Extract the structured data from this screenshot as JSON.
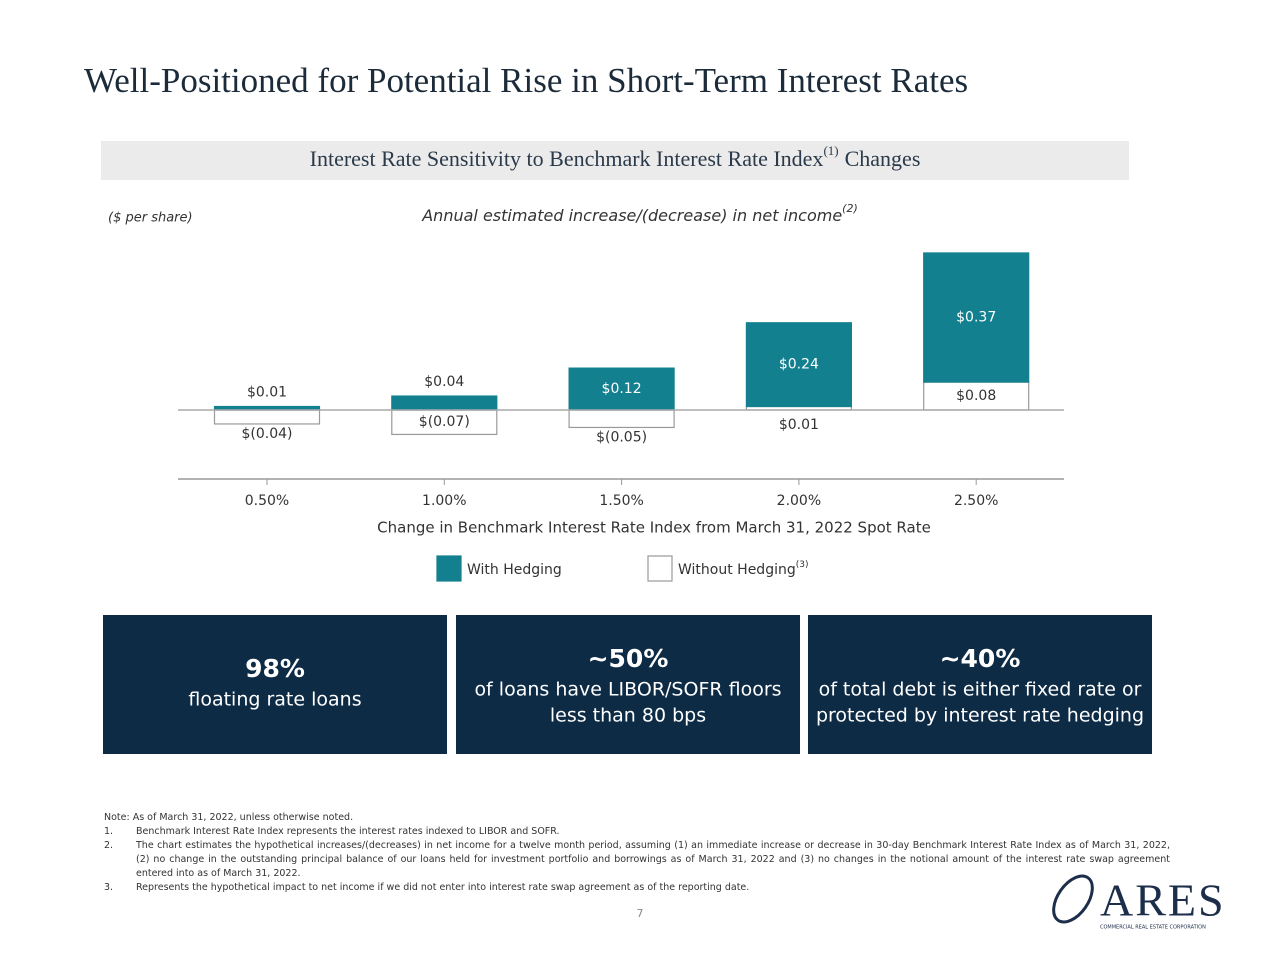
{
  "header": {
    "title": "Well-Positioned for Potential Rise in Short-Term Interest Rates"
  },
  "banner": {
    "text": "Interest Rate Sensitivity to Benchmark Interest Rate Index",
    "note": "(1)",
    "text_after": "Changes"
  },
  "chart_data": {
    "type": "bar",
    "stacked": true,
    "title": "Annual estimated increase/(decrease) in net income",
    "title_note": "(2)",
    "unit_label": "($ per share)",
    "xlabel": "Change in Benchmark Interest Rate Index from March 31, 2022 Spot Rate",
    "categories": [
      "0.50%",
      "1.00%",
      "1.50%",
      "2.00%",
      "2.50%"
    ],
    "series": [
      {
        "name": "With Hedging",
        "color": "#13808f",
        "values": [
          0.01,
          0.04,
          0.12,
          0.24,
          0.37
        ],
        "value_labels": [
          "$0.01",
          "$0.04",
          "$0.12",
          "$0.24",
          "$0.37"
        ]
      },
      {
        "name": "Without Hedging",
        "note": "(3)",
        "color": "#ffffff",
        "values": [
          -0.04,
          -0.07,
          -0.05,
          0.01,
          0.08
        ],
        "value_labels": [
          "$(0.04)",
          "$(0.07)",
          "$(0.05)",
          "$0.01",
          "$0.08"
        ]
      }
    ]
  },
  "stats": [
    {
      "value": "98%",
      "lines": [
        "floating rate loans"
      ]
    },
    {
      "value": "~50%",
      "lines": [
        "of loans have LIBOR/SOFR floors",
        "less than 80 bps"
      ]
    },
    {
      "value": "~40%",
      "lines": [
        "of total debt is either fixed rate or",
        "protected by interest rate hedging"
      ]
    }
  ],
  "notes": {
    "intro": "Note: As of March 31, 2022, unless otherwise noted.",
    "items": [
      {
        "num": "1.",
        "text": "Benchmark Interest Rate Index represents the interest rates indexed to LIBOR and SOFR."
      },
      {
        "num": "2.",
        "text": "The chart estimates the hypothetical increases/(decreases) in net income for a twelve month period, assuming (1) an immediate increase or decrease in 30-day Benchmark Interest Rate Index as of March 31, 2022, (2) no change in the outstanding principal balance of our loans held for investment portfolio and borrowings as of March 31, 2022 and (3) no changes in the notional amount of the interest rate swap agreement entered into as of March 31, 2022."
      },
      {
        "num": "3.",
        "text": "Represents the hypothetical impact to net income if we did not enter into interest rate swap agreement as of the reporting date."
      }
    ]
  },
  "page_number": "7",
  "logo": {
    "name": "ARES",
    "tagline": "COMMERCIAL REAL ESTATE CORPORATION"
  }
}
